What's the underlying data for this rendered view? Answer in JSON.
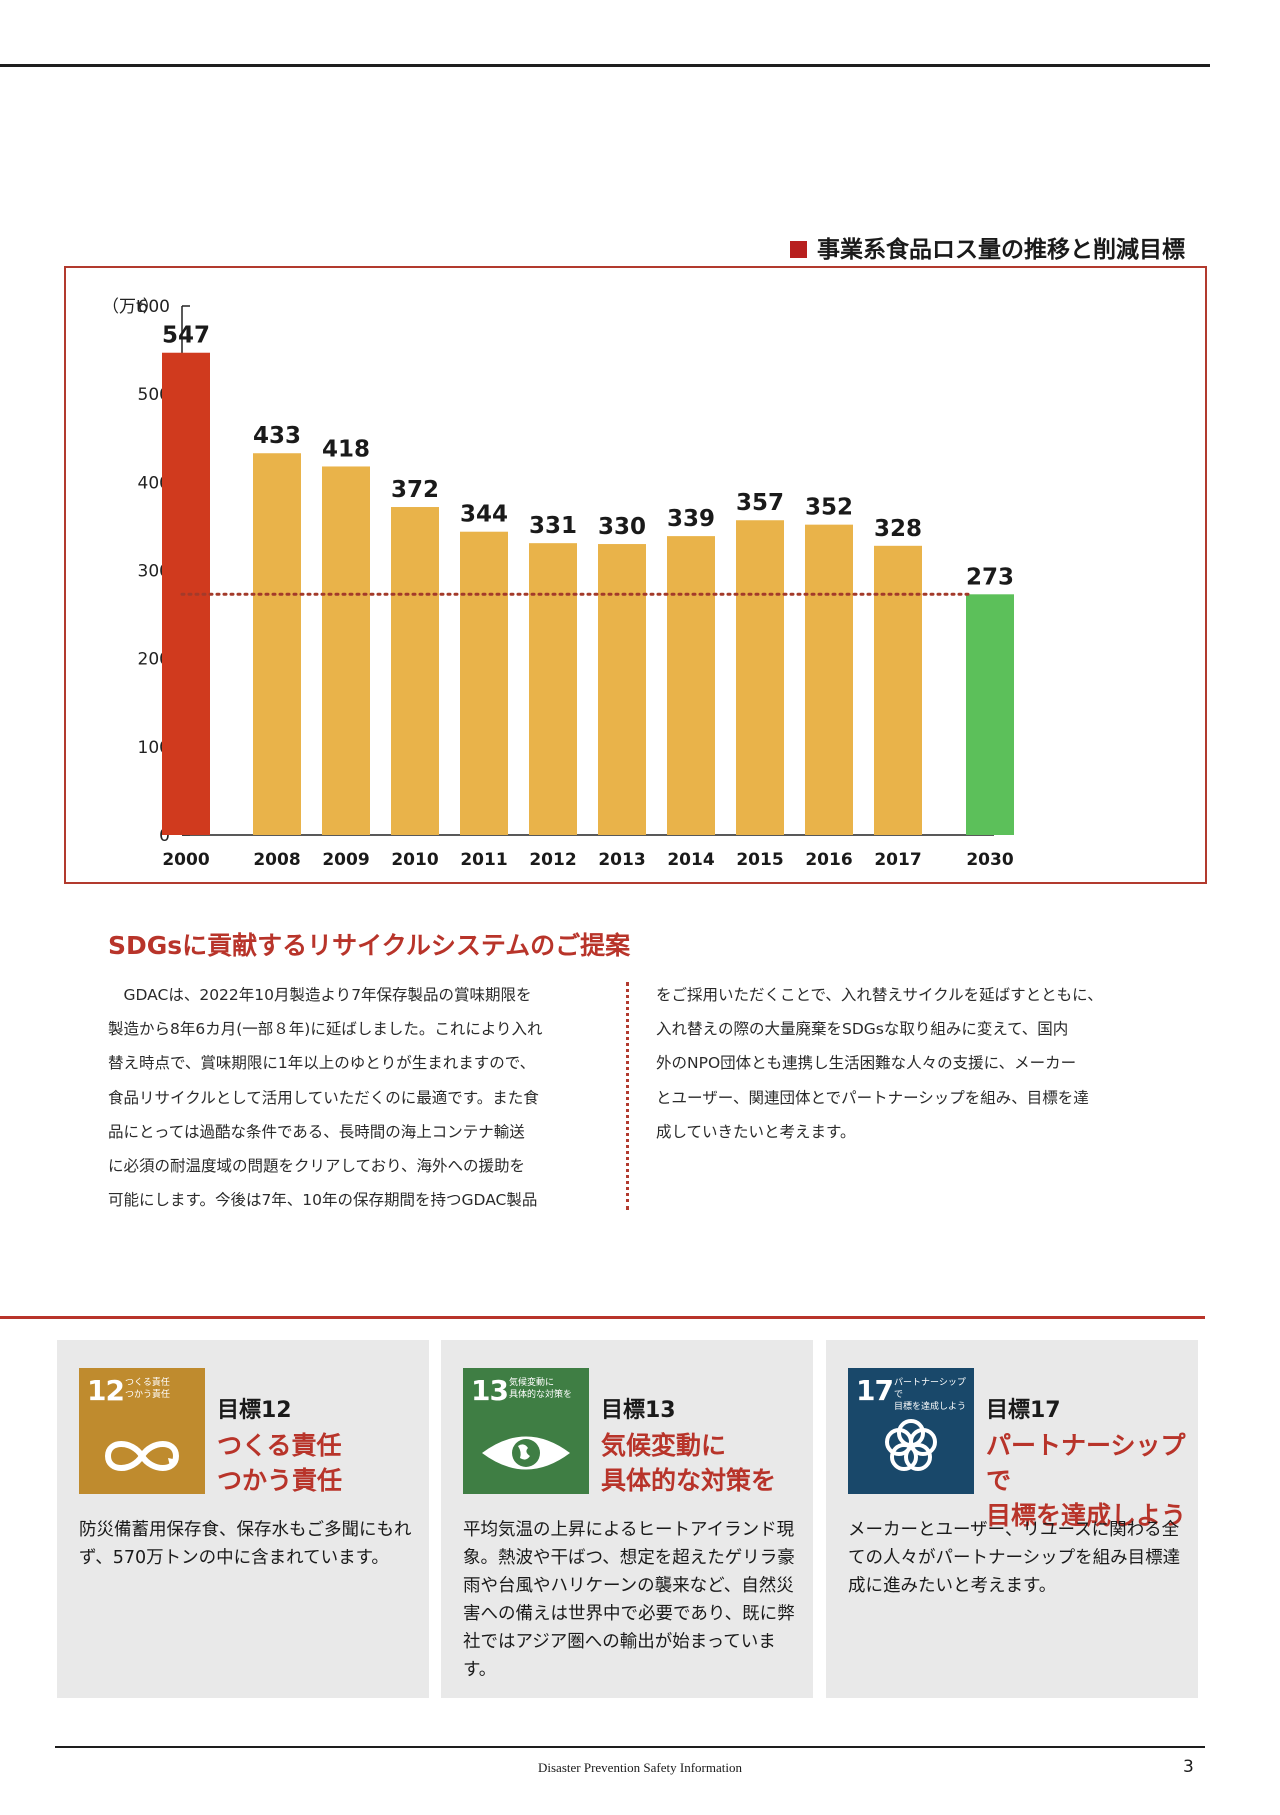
{
  "chart_heading": "事業系食品ロス量の推移と削減目標",
  "chart_data": {
    "type": "bar",
    "title": "事業系食品ロス量の推移と削減目標",
    "ylabel": "（万t）",
    "ylim": [
      0,
      600
    ],
    "yticks": [
      0,
      100,
      200,
      300,
      400,
      500,
      600
    ],
    "categories": [
      "2000",
      "2008",
      "2009",
      "2010",
      "2011",
      "2012",
      "2013",
      "2014",
      "2015",
      "2016",
      "2017",
      "2030"
    ],
    "values": [
      547,
      433,
      418,
      372,
      344,
      331,
      330,
      339,
      357,
      352,
      328,
      273
    ],
    "bar_colors": [
      "#d03a1e",
      "#e9b34a",
      "#e9b34a",
      "#e9b34a",
      "#e9b34a",
      "#e9b34a",
      "#e9b34a",
      "#e9b34a",
      "#e9b34a",
      "#e9b34a",
      "#e9b34a",
      "#5cc05a"
    ],
    "target_line": 273,
    "target_line_color": "#a33a2a",
    "grid": false
  },
  "section": {
    "heading": "SDGsに貢献するリサイクルシステムのご提案",
    "left_lines": [
      "　GDACは、2022年10月製造より7年保存製品の賞味期限を",
      "製造から8年6カ月(一部８年)に延ばしました。これにより入れ",
      "替え時点で、賞味期限に1年以上のゆとりが生まれますので、",
      "食品リサイクルとして活用していただくのに最適です。また食",
      "品にとっては過酷な条件である、長時間の海上コンテナ輸送",
      "に必須の耐温度域の問題をクリアしており、海外への援助を",
      "可能にします。今後は7年、10年の保存期間を持つGDAC製品"
    ],
    "right_lines": [
      "をご採用いただくことで、入れ替えサイクルを延ばすとともに、",
      "入れ替えの際の大量廃棄をSDGsな取り組みに変えて、国内",
      "外のNPO団体とも連携し生活困難な人々の支援に、メーカー",
      "とユーザー、関連団体とでパートナーシップを組み、目標を達",
      "成していきたいと考えます。"
    ]
  },
  "goals": [
    {
      "number": "12",
      "icon_text": "つくる責任\nつかう責任",
      "icon_name": "infinity-icon",
      "color": "#bf8b2e",
      "label": "目標12",
      "subtitle": "つくる責任\nつかう責任",
      "desc": "防災備蓄用保存食、保存水もご多聞にもれず、570万トンの中に含まれています。"
    },
    {
      "number": "13",
      "icon_text": "気候変動に\n具体的な対策を",
      "icon_name": "earth-eye-icon",
      "color": "#3f7e44",
      "label": "目標13",
      "subtitle": "気候変動に\n具体的な対策を",
      "desc": "平均気温の上昇によるヒートアイランド現象。熱波や干ばつ、想定を超えたゲリラ豪雨や台風やハリケーンの襲来など、自然災害への備えは世界中で必要であり、既に弊社ではアジア圏への輸出が始まっています。"
    },
    {
      "number": "17",
      "icon_text": "パートナーシップで\n目標を達成しよう",
      "icon_name": "flower-rings-icon",
      "color": "#19486a",
      "label": "目標17",
      "subtitle": "パートナーシップで\n目標を達成しよう",
      "desc": "メーカーとユーザー、リユースに関わる全ての人々がパートナーシップを組み目標達成に進みたいと考えます。"
    }
  ],
  "footer": {
    "text": "Disaster Prevention Safety Information",
    "page_number": "3"
  }
}
